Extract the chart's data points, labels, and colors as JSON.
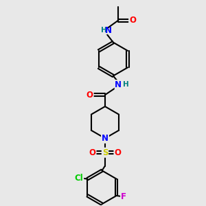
{
  "bg_color": "#e8e8e8",
  "atom_colors": {
    "C": "#000000",
    "N": "#0000ff",
    "O": "#ff0000",
    "H": "#008080",
    "S": "#cccc00",
    "Cl": "#00cc00",
    "F": "#cc00cc"
  },
  "bond_color": "#000000",
  "bond_width": 1.5,
  "font_size": 8.5
}
